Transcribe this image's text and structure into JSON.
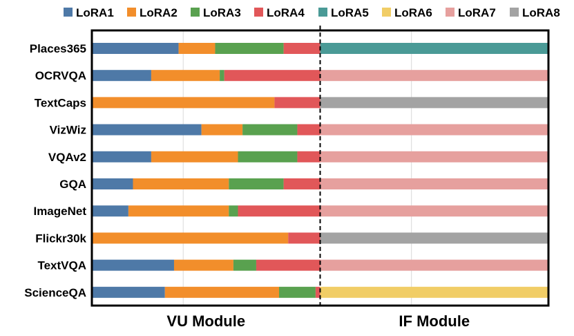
{
  "colors": {
    "LoRA1": "#4e79a7",
    "LoRA2": "#f28e2b",
    "LoRA3": "#59a14f",
    "LoRA4": "#e15759",
    "LoRA5": "#4a9a96",
    "LoRA6": "#f1cd66",
    "LoRA7": "#e6a09e",
    "LoRA8": "#a3a3a3"
  },
  "chart_data": {
    "type": "bar",
    "orientation": "horizontal",
    "stacked": true,
    "legend": [
      "LoRA1",
      "LoRA2",
      "LoRA3",
      "LoRA4",
      "LoRA5",
      "LoRA6",
      "LoRA7",
      "LoRA8"
    ],
    "legend_position": "top",
    "modules": [
      {
        "name": "VU Module",
        "range": [
          0,
          1
        ]
      },
      {
        "name": "IF Module",
        "range": [
          1,
          2
        ]
      }
    ],
    "divider_at": 1,
    "xlim": [
      0,
      2
    ],
    "categories": [
      "Places365",
      "OCRVQA",
      "TextCaps",
      "VizWiz",
      "VQAv2",
      "GQA",
      "ImageNet",
      "Flickr30k",
      "TextVQA",
      "ScienceQA"
    ],
    "vu_series": [
      {
        "name": "LoRA1",
        "values": [
          0.38,
          0.26,
          0.0,
          0.48,
          0.26,
          0.18,
          0.16,
          0.0,
          0.36,
          0.32
        ]
      },
      {
        "name": "LoRA2",
        "values": [
          0.16,
          0.3,
          0.8,
          0.18,
          0.38,
          0.42,
          0.44,
          0.86,
          0.26,
          0.5
        ]
      },
      {
        "name": "LoRA3",
        "values": [
          0.3,
          0.02,
          0.0,
          0.24,
          0.26,
          0.24,
          0.04,
          0.0,
          0.1,
          0.16
        ]
      },
      {
        "name": "LoRA4",
        "values": [
          0.16,
          0.42,
          0.2,
          0.1,
          0.1,
          0.16,
          0.36,
          0.14,
          0.28,
          0.02
        ]
      }
    ],
    "if_series": {
      "assignment": [
        "LoRA5",
        "LoRA7",
        "LoRA8",
        "LoRA7",
        "LoRA7",
        "LoRA7",
        "LoRA7",
        "LoRA8",
        "LoRA7",
        "LoRA6"
      ],
      "values": [
        1,
        1,
        1,
        1,
        1,
        1,
        1,
        1,
        1,
        1
      ]
    }
  }
}
